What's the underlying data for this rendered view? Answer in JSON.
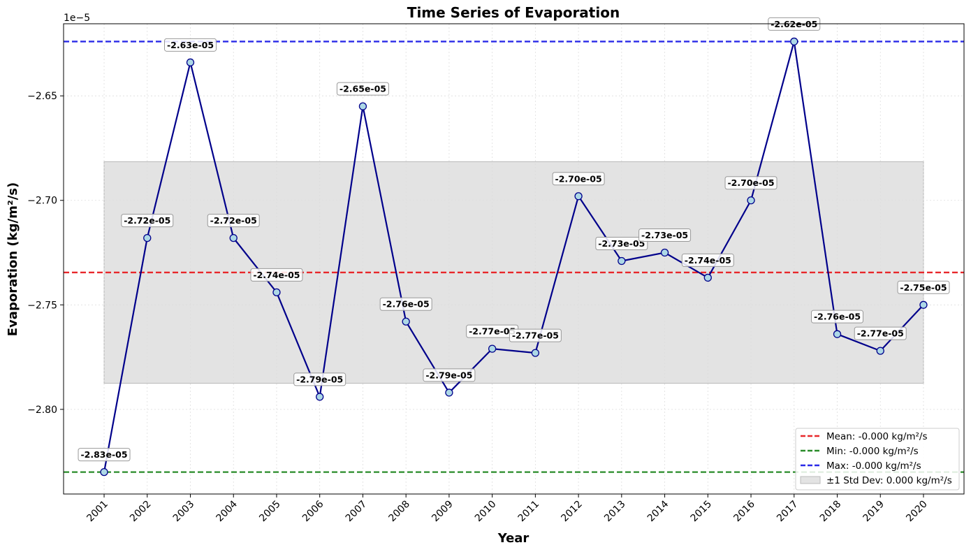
{
  "chart_data": {
    "type": "line",
    "title": "Time Series of Evaporation",
    "xlabel": "Year",
    "ylabel": "Evaporation (kg/m²/s)",
    "y_offset_label": "1e−5",
    "x": [
      2001,
      2002,
      2003,
      2004,
      2005,
      2006,
      2007,
      2008,
      2009,
      2010,
      2011,
      2012,
      2013,
      2014,
      2015,
      2016,
      2017,
      2018,
      2019,
      2020
    ],
    "x_tick_labels": [
      "2001",
      "2002",
      "2003",
      "2004",
      "2005",
      "2006",
      "2007",
      "2008",
      "2009",
      "2010",
      "2011",
      "2012",
      "2013",
      "2014",
      "2015",
      "2016",
      "2017",
      "2018",
      "2019",
      "2020"
    ],
    "y": [
      -2.83,
      -2.718,
      -2.634,
      -2.718,
      -2.744,
      -2.794,
      -2.655,
      -2.758,
      -2.792,
      -2.771,
      -2.773,
      -2.698,
      -2.729,
      -2.725,
      -2.737,
      -2.7,
      -2.624,
      -2.764,
      -2.772,
      -2.75
    ],
    "y_unit_scale": 1e-05,
    "data_labels": [
      "-2.83e-05",
      "-2.72e-05",
      "-2.63e-05",
      "-2.72e-05",
      "-2.74e-05",
      "-2.79e-05",
      "-2.65e-05",
      "-2.76e-05",
      "-2.79e-05",
      "-2.77e-05",
      "-2.77e-05",
      "-2.70e-05",
      "-2.73e-05",
      "-2.73e-05",
      "-2.74e-05",
      "-2.70e-05",
      "-2.62e-05",
      "-2.76e-05",
      "-2.77e-05",
      "-2.75e-05"
    ],
    "y_ticks": [
      -2.8,
      -2.75,
      -2.7,
      -2.65
    ],
    "y_tick_labels": [
      "−2.80",
      "−2.75",
      "−2.70",
      "−2.65"
    ],
    "ylim": [
      -2.8405,
      -2.6155
    ],
    "xlim": [
      2000.06,
      2020.94
    ],
    "reference_lines": [
      {
        "name": "Mean: -0.000 kg/m²/s",
        "value": -2.7345,
        "color": "#e8282b"
      },
      {
        "name": "Min: -0.000 kg/m²/s",
        "value": -2.83,
        "color": "#2a8c2a"
      },
      {
        "name": "Max: -0.000 kg/m²/s",
        "value": -2.624,
        "color": "#2a2ae8"
      }
    ],
    "std_band": {
      "name": "±1 Std Dev: 0.000 kg/m²/s",
      "lower": -2.7875,
      "upper": -2.6815,
      "color": "#c8c8c8"
    },
    "line_color": "#00008b",
    "marker_fill": "#add8e6",
    "grid": true,
    "legend_position": "lower-right"
  }
}
